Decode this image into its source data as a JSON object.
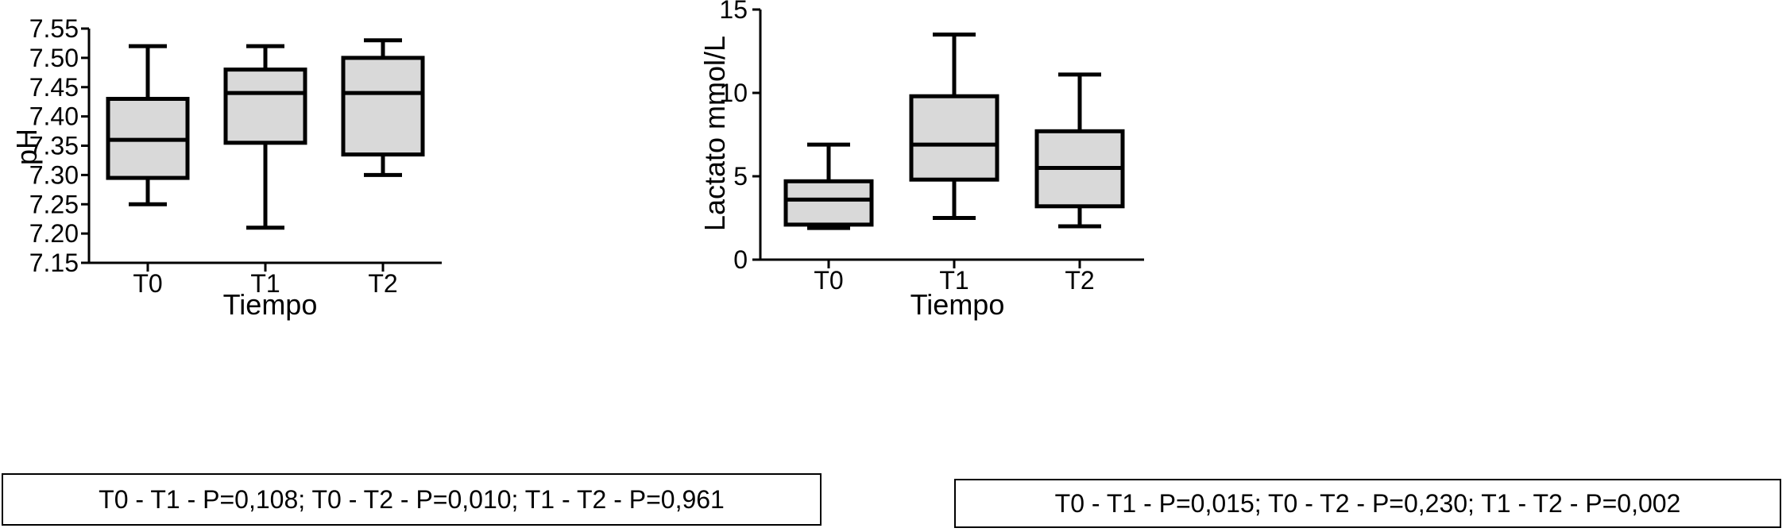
{
  "chart_data": [
    {
      "type": "box",
      "xlabel": "Tiempo",
      "ylabel": "pH",
      "ylim": [
        7.15,
        7.55
      ],
      "yticks": [
        "7.15",
        "7.20",
        "7.25",
        "7.30",
        "7.35",
        "7.40",
        "7.45",
        "7.50",
        "7.55"
      ],
      "categories": [
        "T0",
        "T1",
        "T2"
      ],
      "boxes": [
        {
          "category": "T0",
          "min": 7.25,
          "q1": 7.295,
          "median": 7.36,
          "q3": 7.43,
          "max": 7.52
        },
        {
          "category": "T1",
          "min": 7.21,
          "q1": 7.355,
          "median": 7.44,
          "q3": 7.48,
          "max": 7.52
        },
        {
          "category": "T2",
          "min": 7.3,
          "q1": 7.335,
          "median": 7.44,
          "q3": 7.5,
          "max": 7.53
        }
      ],
      "grid": false,
      "box_fill": "#d9d9d9",
      "stats_note": "T0 - T1 - P=0,108; T0 - T2 - P=0,010; T1 - T2 - P=0,961"
    },
    {
      "type": "box",
      "xlabel": "Tiempo",
      "ylabel": "Lactato mmol/L",
      "ylim": [
        0,
        15
      ],
      "yticks": [
        "0",
        "5",
        "10",
        "15"
      ],
      "categories": [
        "T0",
        "T1",
        "T2"
      ],
      "boxes": [
        {
          "category": "T0",
          "min": 1.9,
          "q1": 2.1,
          "median": 3.6,
          "q3": 4.7,
          "max": 6.9
        },
        {
          "category": "T1",
          "min": 2.5,
          "q1": 4.8,
          "median": 6.9,
          "q3": 9.8,
          "max": 13.5
        },
        {
          "category": "T2",
          "min": 2.0,
          "q1": 3.2,
          "median": 5.5,
          "q3": 7.7,
          "max": 11.1
        }
      ],
      "grid": false,
      "box_fill": "#d9d9d9",
      "stats_note": "T0 - T1 - P=0,015; T0 - T2 - P=0,230; T1 - T2 - P=0,002"
    }
  ]
}
